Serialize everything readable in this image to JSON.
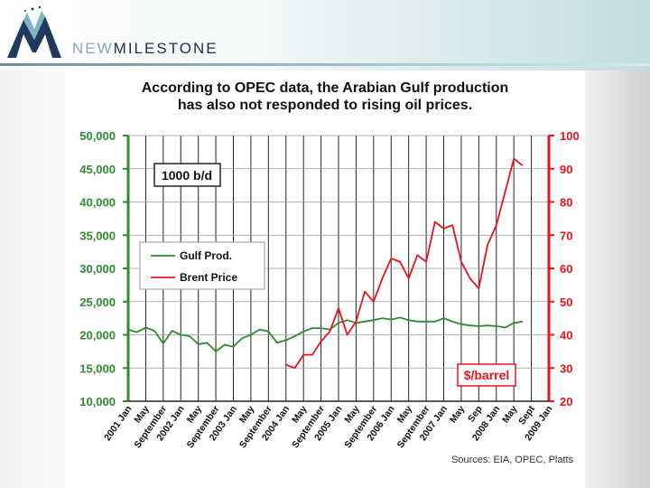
{
  "brand": {
    "part1": "NEW",
    "part2": "MILESTONE"
  },
  "slide": {
    "title_line1": "According to OPEC data, the Arabian Gulf production",
    "title_line2": "has also not responded to rising oil prices.",
    "source": "Sources: EIA, OPEC, Platts"
  },
  "colors": {
    "gulf": "#2e8b2e",
    "brent": "#e8141c",
    "left_axis": "#2e8b2e",
    "right_axis": "#e8141c"
  },
  "chart_data": {
    "type": "line",
    "x_tick_labels": [
      "2001 Jan",
      "May",
      "September",
      "2002 Jan",
      "May",
      "September",
      "2003 Jan",
      "May",
      "September",
      "2004 Jan",
      "May",
      "September",
      "2005 Jan",
      "May",
      "September",
      "2006 Jan",
      "May",
      "September",
      "2007 Jan",
      "May",
      "Sep",
      "2008 Jan",
      "May",
      "Sept",
      "2009 Jan"
    ],
    "y_left": {
      "label": "1000 b/d",
      "min": 10000,
      "max": 50000,
      "ticks": [
        "10,000",
        "15,000",
        "20,000",
        "25,000",
        "30,000",
        "35,000",
        "40,000",
        "45,000",
        "50,000"
      ]
    },
    "y_right": {
      "label": "$/barrel",
      "min": 20,
      "max": 100,
      "ticks": [
        "20",
        "30",
        "40",
        "50",
        "60",
        "70",
        "80",
        "90",
        "100"
      ]
    },
    "legend": {
      "position": "upper-left"
    },
    "grid": true,
    "series": [
      {
        "name": "Gulf Prod.",
        "axis": "left",
        "x": [
          0,
          0.5,
          1,
          1.5,
          2,
          2.5,
          3,
          3.5,
          4,
          4.5,
          5,
          5.5,
          6,
          6.5,
          7,
          7.5,
          8,
          8.5,
          9,
          9.5,
          10,
          10.5,
          11,
          11.5,
          12,
          12.5,
          13,
          13.5,
          14,
          14.5,
          15,
          15.5,
          16,
          16.5,
          17,
          17.5,
          18,
          18.5,
          19,
          19.5,
          20,
          20.5,
          21,
          21.5,
          22,
          22.5
        ],
        "values": [
          20800,
          20400,
          21100,
          20600,
          18700,
          20600,
          20000,
          19800,
          18600,
          18800,
          17500,
          18500,
          18200,
          19500,
          20000,
          20800,
          20500,
          18800,
          19200,
          19800,
          20500,
          21000,
          21000,
          20800,
          21800,
          22200,
          21800,
          22000,
          22200,
          22500,
          22300,
          22600,
          22200,
          22000,
          22000,
          22000,
          22500,
          22000,
          21600,
          21400,
          21300,
          21400,
          21300,
          21100,
          21800,
          22000
        ]
      },
      {
        "name": "Brent Price",
        "axis": "right",
        "x": [
          9,
          9.5,
          10,
          10.5,
          11,
          11.5,
          12,
          12.5,
          13,
          13.5,
          14,
          14.5,
          15,
          15.5,
          16,
          16.5,
          17,
          17.5,
          18,
          18.5,
          19,
          19.5,
          20,
          20.5,
          21,
          21.5,
          22,
          22.5
        ],
        "values": [
          31,
          30,
          34,
          34,
          38,
          41,
          48,
          40,
          44,
          53,
          50,
          57,
          63,
          62,
          57,
          64,
          62,
          74,
          72,
          73,
          62,
          57,
          54,
          67,
          73,
          83,
          93,
          91
        ]
      }
    ]
  }
}
